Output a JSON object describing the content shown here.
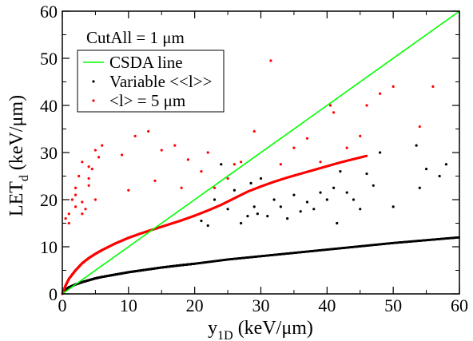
{
  "chart_data": {
    "type": "scatter",
    "title": "",
    "annotation": "CutAll = 1 μm",
    "xlabel": {
      "main": "y",
      "sub": "1D",
      "unit": " (keV/μm)"
    },
    "ylabel": {
      "main": "LET",
      "sub": "d",
      "unit": " (keV/μm)"
    },
    "xlim": [
      0,
      60
    ],
    "ylim": [
      0,
      60
    ],
    "x_ticks": [
      0,
      10,
      20,
      30,
      40,
      50,
      60
    ],
    "y_ticks": [
      0,
      10,
      20,
      30,
      40,
      50,
      60
    ],
    "grid": false,
    "legend_position": "top-left",
    "line": {
      "name": "CSDA line",
      "color": "#00ff00",
      "x": [
        0,
        60
      ],
      "y": [
        0,
        60
      ]
    },
    "series": [
      {
        "name": "Variable <<l>>",
        "color": "#000000",
        "trend": {
          "x": [
            0,
            0.5,
            1,
            2,
            3,
            4,
            5,
            6,
            8,
            10,
            12,
            15,
            18,
            20,
            25,
            30,
            35,
            40,
            45,
            50,
            55,
            60
          ],
          "y": [
            0,
            0.9,
            1.4,
            2.0,
            2.5,
            2.9,
            3.3,
            3.6,
            4.1,
            4.6,
            5.0,
            5.6,
            6.1,
            6.4,
            7.3,
            8.0,
            8.7,
            9.4,
            10.1,
            10.8,
            11.4,
            12.0
          ]
        },
        "scatter": {
          "x": [
            21,
            22,
            23,
            24,
            25,
            26,
            27,
            28,
            28.5,
            29,
            29.5,
            30,
            31,
            32,
            33,
            34,
            35,
            36,
            37,
            38,
            39,
            40,
            41,
            41.5,
            42,
            43,
            44,
            45,
            46,
            47,
            48,
            50,
            53.5,
            54,
            55,
            57,
            58
          ],
          "y": [
            15.5,
            14.5,
            20.0,
            27.5,
            18.0,
            22.0,
            15.0,
            16.5,
            23.5,
            18.5,
            17.0,
            24.5,
            16.5,
            20.0,
            18.5,
            16.0,
            21.0,
            17.5,
            19.5,
            18.0,
            21.5,
            20.0,
            22.5,
            15.0,
            26.0,
            21.5,
            20.0,
            18.0,
            25.5,
            23.0,
            30.0,
            18.5,
            31.5,
            22.5,
            26.5,
            25.0,
            27.5
          ]
        }
      },
      {
        "name": "<l> = 5 μm",
        "color": "#ff0000",
        "trend": {
          "x": [
            0,
            0.5,
            1,
            2,
            3,
            4,
            5,
            6,
            8,
            10,
            12,
            14,
            16,
            18,
            20,
            22,
            24,
            26,
            28,
            30,
            32,
            34,
            36,
            38,
            40,
            42,
            44,
            46
          ],
          "y": [
            0,
            1.8,
            3.2,
            5.0,
            6.5,
            7.6,
            8.5,
            9.3,
            10.7,
            11.9,
            12.9,
            13.8,
            14.7,
            15.6,
            16.6,
            17.7,
            18.9,
            20.3,
            21.7,
            22.8,
            23.8,
            24.7,
            25.5,
            26.3,
            27.1,
            27.9,
            28.6,
            29.3
          ]
        },
        "scatter": {
          "x": [
            0.5,
            1,
            1.5,
            2,
            2.5,
            3,
            3.5,
            4,
            4.5,
            5,
            5.5,
            6,
            1,
            2,
            3,
            4,
            5,
            3,
            4,
            2,
            9,
            11,
            13,
            15,
            17,
            19,
            21,
            23,
            25,
            27,
            29,
            31.5,
            33,
            35,
            37,
            39,
            40.5,
            41,
            43,
            45,
            46,
            48,
            50,
            54,
            56,
            10,
            14,
            18,
            22,
            26
          ],
          "y": [
            16.0,
            17.0,
            20.0,
            22.5,
            25.0,
            19.5,
            18.0,
            23.0,
            26.5,
            30.5,
            29.0,
            31.5,
            15.0,
            21.0,
            17.0,
            24.5,
            20.0,
            28.0,
            27.0,
            18.5,
            29.5,
            33.5,
            34.5,
            30.5,
            31.5,
            28.5,
            26.0,
            22.5,
            24.5,
            28.0,
            34.5,
            49.5,
            27.5,
            31.0,
            33.0,
            28.0,
            40.0,
            38.5,
            31.0,
            33.5,
            40.0,
            42.5,
            44.0,
            35.5,
            44.0,
            22.0,
            24.0,
            22.5,
            30.0,
            27.5
          ]
        }
      }
    ]
  }
}
